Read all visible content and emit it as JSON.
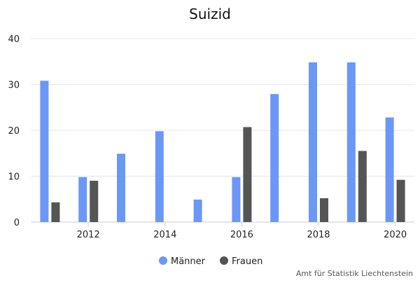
{
  "chart_data": {
    "type": "bar",
    "title": "Suizid",
    "xlabel": "",
    "ylabel": "",
    "x": [
      2011,
      2012,
      2013,
      2014,
      2015,
      2016,
      2017,
      2018,
      2019,
      2020
    ],
    "x_tick_labels": [
      "2012",
      "2014",
      "2016",
      "2018",
      "2020"
    ],
    "x_tick_values": [
      2012,
      2014,
      2016,
      2018,
      2020
    ],
    "y_tick_labels": [
      "0",
      "10",
      "20",
      "30",
      "40"
    ],
    "ylim": [
      0,
      40
    ],
    "grid": true,
    "legend_position": "bottom",
    "series": [
      {
        "name": "Männer",
        "color": "#6b97f7",
        "values": [
          30.8,
          9.8,
          14.9,
          19.8,
          4.9,
          9.8,
          27.9,
          34.8,
          34.8,
          22.8
        ]
      },
      {
        "name": "Frauen",
        "color": "#555555",
        "values": [
          4.3,
          9.0,
          null,
          null,
          null,
          20.7,
          null,
          5.2,
          15.5,
          9.2
        ]
      }
    ],
    "credit": "Amt für Statistik Liechtenstein"
  }
}
